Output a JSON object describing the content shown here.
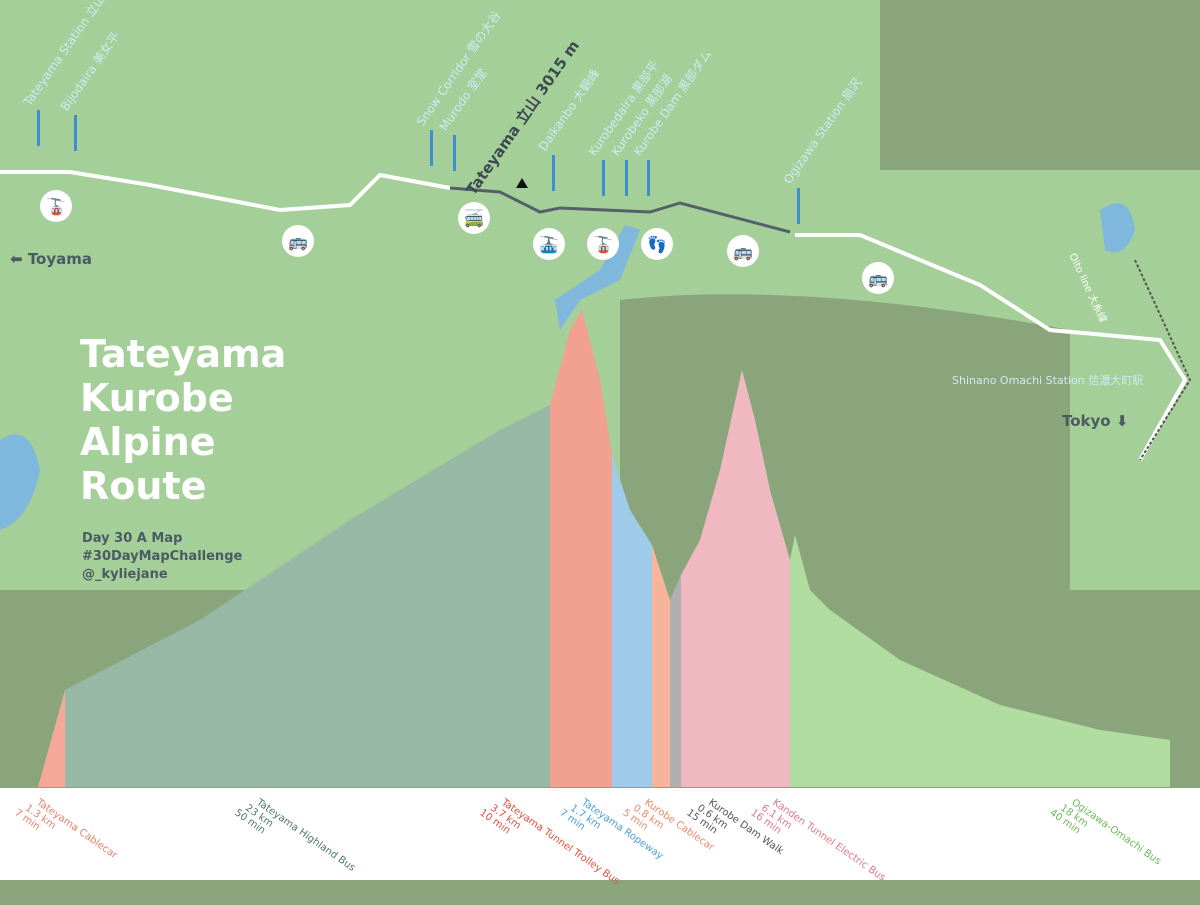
{
  "title": "Tateyama Kurobe Alpine Route",
  "subtitle": [
    "Day 30 A Map",
    "#30DayMapChallenge",
    "@_kyliejane"
  ],
  "peak": "Tateyama 立山 3015 m",
  "stations": [
    "Tateyama Station 立山",
    "Bijodaira 美女平",
    "Snow Corridor 雪の大谷",
    "Murodo 室堂",
    "Daikanbo 大観峰",
    "Kurobedaira 黒部平",
    "Kurobeko 黒部湖",
    "Kurobe Dam 黒部ダム",
    "Ogizawa Station 扇沢"
  ],
  "shinano": "Shinano Omachi Station 信濃大町駅",
  "oito": "Oito line 大糸線",
  "cities": {
    "toyama": "Toyama",
    "tokyo": "Tokyo"
  },
  "icons": [
    "cablecar-icon",
    "bus-icon",
    "trolley-bus-icon",
    "ropeway-icon",
    "cablecar-icon",
    "walk-icon",
    "electric-bus-icon",
    "bus-icon"
  ],
  "chart_data": {
    "type": "area",
    "title": "",
    "segments": [
      {
        "name": "Tateyama Cablecar",
        "dist": "1.3 km",
        "time": "7 min",
        "color": "#f4a89a",
        "text": "#e8806e"
      },
      {
        "name": "Tateyama Highland Bus",
        "dist": "23 km",
        "time": "50 min",
        "color": "#97b8a5",
        "text": "#4f7a66"
      },
      {
        "name": "Tateyama Tunnel Trolley Bus",
        "dist": "3.7 km",
        "time": "10 min",
        "color": "#f2a090",
        "text": "#e0503c"
      },
      {
        "name": "Tateyama Ropeway",
        "dist": "1.7 km",
        "time": "7 min",
        "color": "#9ecbea",
        "text": "#4ea0dc"
      },
      {
        "name": "Kurobe Cablecar",
        "dist": "0.8 km",
        "time": "5 min",
        "color": "#f6b49a",
        "text": "#ec8a6a"
      },
      {
        "name": "Kurobe Dam Walk",
        "dist": "0.6 km",
        "time": "15 min",
        "color": "#b0b0b0",
        "text": "#555"
      },
      {
        "name": "Kanden Tunnel Electric Bus",
        "dist": "6.1 km",
        "time": "16 min",
        "color": "#f0b8c0",
        "text": "#e07888"
      },
      {
        "name": "Ogizawa-Omachi Bus",
        "dist": "18 km",
        "time": "40 min",
        "color": "#b0dca0",
        "text": "#6cba5c"
      }
    ]
  }
}
